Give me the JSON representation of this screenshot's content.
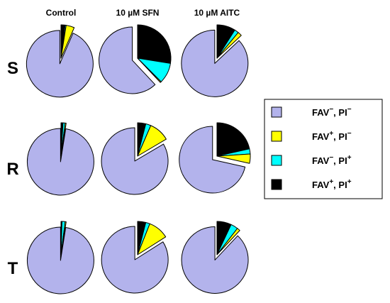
{
  "chart_data": {
    "type": "pie",
    "columns": [
      "Control",
      "10 µM SFN",
      "10 µM AITC"
    ],
    "rows": [
      "S",
      "R",
      "T"
    ],
    "legend": [
      {
        "base1": "FAV",
        "sup1": "−",
        "base2": ", PI",
        "sup2": "−",
        "color": "#b3b3ec"
      },
      {
        "base1": "FAV",
        "sup1": "+",
        "base2": ", PI",
        "sup2": "−",
        "color": "#ffff00"
      },
      {
        "base1": "FAV",
        "sup1": "−",
        "base2": ", PI",
        "sup2": "+",
        "color": "#00ffff"
      },
      {
        "base1": "FAV",
        "sup1": "+",
        "base2": ", PI",
        "sup2": "+",
        "color": "#000000"
      }
    ],
    "slice_order": [
      "FAV-, PI-",
      "FAV+, PI-",
      "FAV-, PI+",
      "FAV+, PI+"
    ],
    "exploded_slice": "FAV-, PI-",
    "panels": [
      {
        "row": "S",
        "column": "Control",
        "values": [
          93.5,
          4.0,
          0.5,
          2.0
        ]
      },
      {
        "row": "S",
        "column": "10 µM SFN",
        "values": [
          62.0,
          0.5,
          10.0,
          27.5
        ]
      },
      {
        "row": "S",
        "column": "10 µM AITC",
        "values": [
          87.0,
          2.0,
          2.0,
          9.0
        ]
      },
      {
        "row": "R",
        "column": "Control",
        "values": [
          97.5,
          0.5,
          1.0,
          1.0
        ]
      },
      {
        "row": "R",
        "column": "10 µM SFN",
        "values": [
          83.5,
          10.0,
          2.5,
          4.0
        ]
      },
      {
        "row": "R",
        "column": "10 µM AITC",
        "values": [
          71.5,
          4.5,
          2.5,
          21.5
        ]
      },
      {
        "row": "T",
        "column": "Control",
        "values": [
          97.5,
          0.5,
          1.5,
          0.5
        ]
      },
      {
        "row": "T",
        "column": "10 µM SFN",
        "values": [
          84.0,
          10.0,
          2.0,
          4.0
        ]
      },
      {
        "row": "T",
        "column": "10 µM AITC",
        "values": [
          88.0,
          1.5,
          3.5,
          7.0
        ]
      }
    ]
  }
}
